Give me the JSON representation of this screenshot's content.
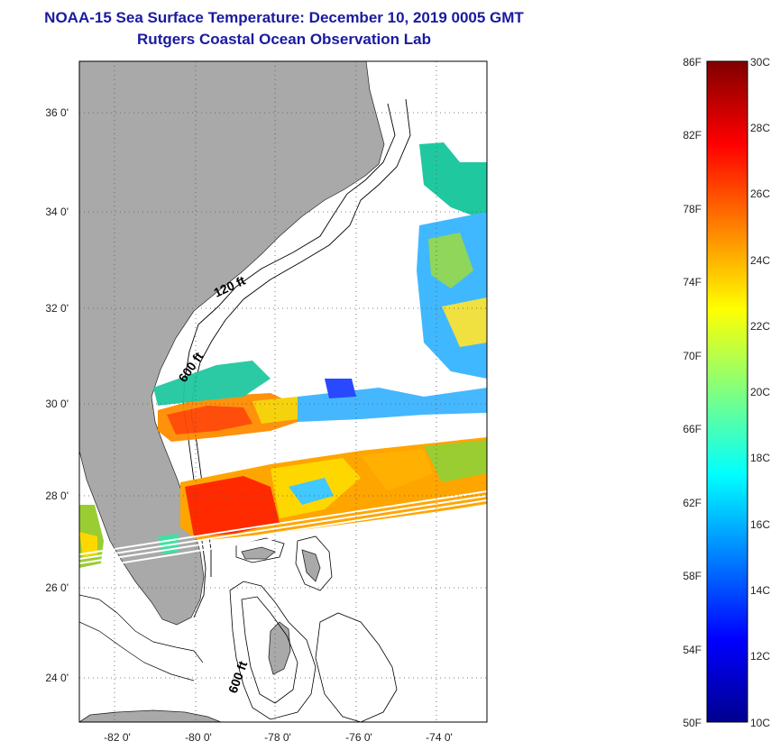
{
  "title": "NOAA-15 Sea Surface Temperature:  December 10, 2019 0005 GMT",
  "subtitle": "Rutgers Coastal Ocean Observation Lab",
  "map": {
    "lat_ticks": [
      "36 0'",
      "34 0'",
      "32 0'",
      "30 0'",
      "28 0'",
      "26 0'",
      "24 0'"
    ],
    "lon_ticks": [
      "-82 0'",
      "-80 0'",
      "-78 0'",
      "-76 0'",
      "-74 0'"
    ],
    "contour_labels": [
      "120 ft",
      "600 ft",
      "600 ft"
    ],
    "colors": {
      "land": "#a9a9a9",
      "water_nodata": "#ffffff"
    }
  },
  "colorbar": {
    "fahrenheit": [
      "86F",
      "82F",
      "78F",
      "74F",
      "70F",
      "66F",
      "62F",
      "58F",
      "54F",
      "50F"
    ],
    "celsius": [
      "30C",
      "28C",
      "26C",
      "24C",
      "22C",
      "20C",
      "18C",
      "16C",
      "14C",
      "12C",
      "10C"
    ],
    "colormap": [
      "#00008f",
      "#0000ff",
      "#0080ff",
      "#00ffff",
      "#80ff80",
      "#ffff00",
      "#ff8000",
      "#ff0000",
      "#800000"
    ]
  }
}
